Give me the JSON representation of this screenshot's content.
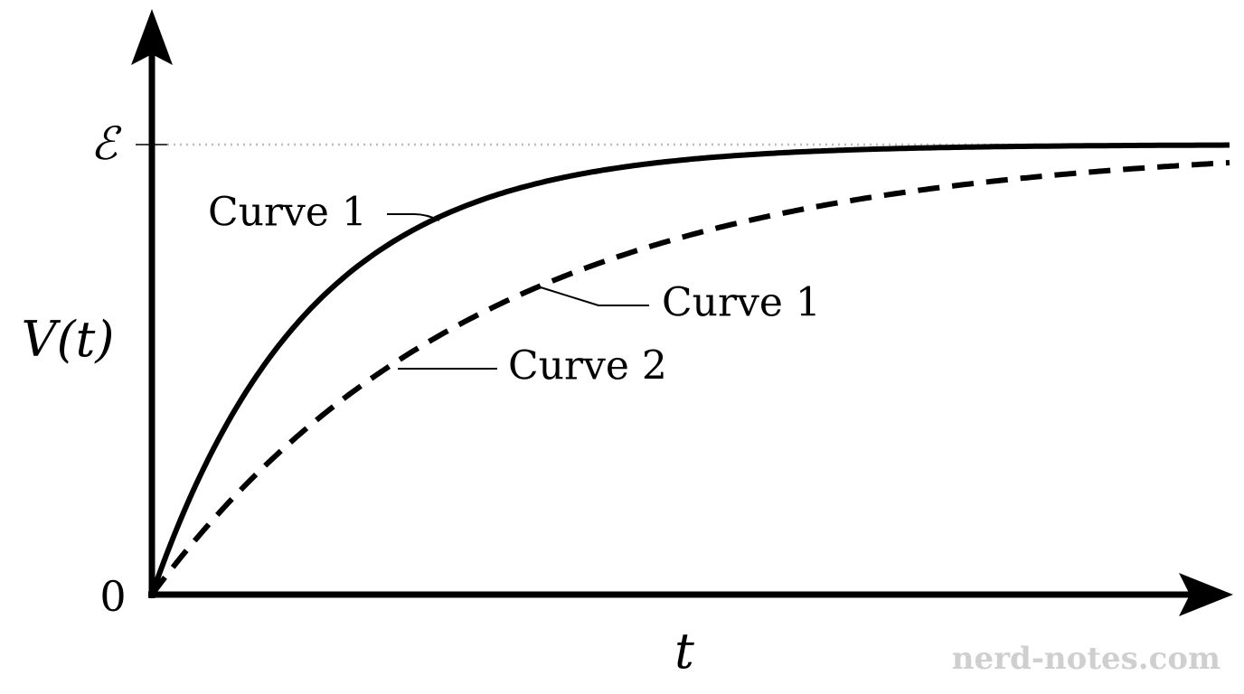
{
  "axes": {
    "y_label": "V(t)",
    "x_label": "t",
    "y_top_tick": "ℰ",
    "origin_tick": "0"
  },
  "curve_labels": [
    "Curve 1",
    "Curve 1",
    "Curve 2"
  ],
  "watermark": "nerd-notes.com"
}
